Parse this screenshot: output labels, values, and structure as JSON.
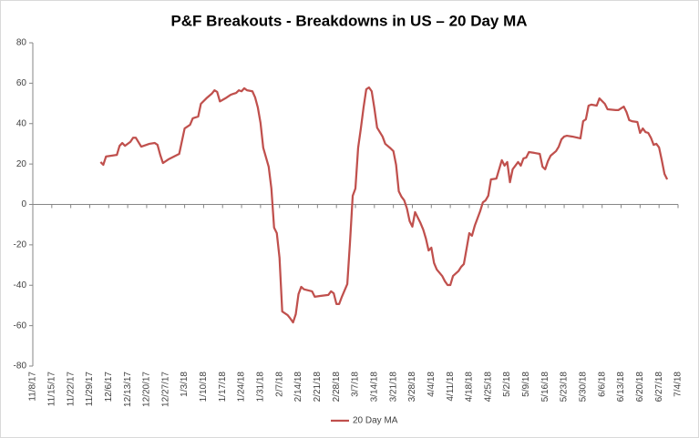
{
  "chart_data": {
    "type": "line",
    "title": "P&F Breakouts - Breakdowns in US – 20 Day MA",
    "x": [
      "12/3/17",
      "12/4/17",
      "12/5/17",
      "12/9/17",
      "12/10/17",
      "12/11/17",
      "12/12/17",
      "12/14/17",
      "12/15/17",
      "12/16/17",
      "12/18/17",
      "12/21/17",
      "12/23/17",
      "12/24/17",
      "12/25/17",
      "12/26/17",
      "12/28/17",
      "1/1/18",
      "1/3/18",
      "1/5/18",
      "1/6/18",
      "1/8/18",
      "1/9/18",
      "1/11/18",
      "1/13/18",
      "1/14/18",
      "1/15/18",
      "1/16/18",
      "1/18/18",
      "1/20/18",
      "1/22/18",
      "1/23/18",
      "1/24/18",
      "1/25/18",
      "1/26/18",
      "1/28/18",
      "1/29/18",
      "1/30/18",
      "1/31/18",
      "2/1/18",
      "2/3/18",
      "2/4/18",
      "2/5/18",
      "2/6/18",
      "2/7/18",
      "2/8/18",
      "2/10/18",
      "2/11/18",
      "2/12/18",
      "2/13/18",
      "2/14/18",
      "2/15/18",
      "2/16/18",
      "2/19/18",
      "2/20/18",
      "2/22/18",
      "2/25/18",
      "2/26/18",
      "2/27/18",
      "2/28/18",
      "3/1/18",
      "3/2/18",
      "3/4/18",
      "3/5/18",
      "3/6/18",
      "3/7/18",
      "3/8/18",
      "3/9/18",
      "3/10/18",
      "3/11/18",
      "3/12/18",
      "3/13/18",
      "3/14/18",
      "3/15/18",
      "3/16/18",
      "3/17/18",
      "3/18/18",
      "3/20/18",
      "3/21/18",
      "3/22/18",
      "3/23/18",
      "3/24/18",
      "3/25/18",
      "3/26/18",
      "3/27/18",
      "3/28/18",
      "3/29/18",
      "3/30/18",
      "3/31/18",
      "4/1/18",
      "4/2/18",
      "4/3/18",
      "4/4/18",
      "4/5/18",
      "4/6/18",
      "4/8/18",
      "4/9/18",
      "4/10/18",
      "4/11/18",
      "4/12/18",
      "4/14/18",
      "4/15/18",
      "4/16/18",
      "4/17/18",
      "4/18/18",
      "4/19/18",
      "4/20/18",
      "4/21/18",
      "4/22/18",
      "4/23/18",
      "4/24/18",
      "4/25/18",
      "4/26/18",
      "4/28/18",
      "4/29/18",
      "4/30/18",
      "5/1/18",
      "5/2/18",
      "5/3/18",
      "5/4/18",
      "5/5/18",
      "5/6/18",
      "5/7/18",
      "5/8/18",
      "5/9/18",
      "5/10/18",
      "5/12/18",
      "5/14/18",
      "5/15/18",
      "5/16/18",
      "5/17/18",
      "5/18/18",
      "5/20/18",
      "5/21/18",
      "5/22/18",
      "5/23/18",
      "5/24/18",
      "5/26/18",
      "5/29/18",
      "5/30/18",
      "5/31/18",
      "6/1/18",
      "6/2/18",
      "6/4/18",
      "6/5/18",
      "6/7/18",
      "6/8/18",
      "6/11/18",
      "6/12/18",
      "6/14/18",
      "6/15/18",
      "6/16/18",
      "6/17/18",
      "6/19/18",
      "6/20/18",
      "6/21/18",
      "6/22/18",
      "6/23/18",
      "6/24/18",
      "6/25/18",
      "6/26/18",
      "6/27/18",
      "6/28/18",
      "6/29/18",
      "6/30/18"
    ],
    "series": [
      {
        "name": "20 Day MA",
        "color": "#c0504d",
        "values": [
          21,
          19.6,
          23.7,
          24.5,
          29,
          30.4,
          29,
          31,
          33,
          33,
          28.6,
          30,
          30.4,
          29.5,
          24.5,
          20.5,
          22.3,
          25,
          37.6,
          39.4,
          42.6,
          43.5,
          49.8,
          52.5,
          54.8,
          56.5,
          55.7,
          51,
          52.5,
          54.3,
          55.2,
          56.5,
          56,
          57.5,
          56.5,
          56,
          53,
          48,
          40.3,
          28,
          18.7,
          7.9,
          -11.5,
          -14.2,
          -26.4,
          -53,
          -54.8,
          -56.5,
          -58.4,
          -54.3,
          -44.4,
          -40.8,
          -42,
          -43,
          -45.7,
          -45.3,
          -44.8,
          -43,
          -44,
          -49.3,
          -49.3,
          -45.7,
          -39.4,
          -18.7,
          4.3,
          7.9,
          28,
          37.6,
          48,
          57,
          57.9,
          56,
          47.5,
          38,
          35.8,
          33.6,
          30,
          27.7,
          26.4,
          19.6,
          6.5,
          3.8,
          2,
          -2,
          -8.3,
          -11,
          -3.8,
          -6.5,
          -9.2,
          -12.4,
          -16.9,
          -22.8,
          -21.4,
          -29,
          -32.2,
          -35.4,
          -38,
          -39.9,
          -39.9,
          -35.4,
          -33,
          -30.9,
          -29.5,
          -21.9,
          -14.2,
          -15.5,
          -10.6,
          -7,
          -3.4,
          1,
          2,
          4.3,
          12.4,
          12.8,
          17.4,
          21.9,
          19.2,
          21,
          11,
          17.4,
          19.2,
          21,
          19.2,
          22.8,
          23.2,
          25.9,
          25.5,
          25,
          18.7,
          17.4,
          21.4,
          24.1,
          26.4,
          28.6,
          32.2,
          33.6,
          34,
          33.6,
          32.7,
          41.2,
          42.1,
          48.9,
          49.4,
          48.9,
          52.5,
          49.8,
          47.1,
          46.7,
          46.7,
          48.4,
          45.7,
          41.7,
          41.2,
          40.8,
          35.4,
          37.6,
          35.8,
          35.4,
          33,
          29.5,
          30,
          28.2,
          21.9,
          15.1,
          12.4
        ]
      }
    ],
    "ylim": [
      -80,
      80
    ],
    "yticks": [
      -80,
      -60,
      -40,
      -20,
      0,
      20,
      40,
      60,
      80
    ],
    "xlim": [
      "11/8/17",
      "7/4/18"
    ],
    "xticks": [
      "11/8/17",
      "11/15/17",
      "11/22/17",
      "11/29/17",
      "12/6/17",
      "12/13/17",
      "12/20/17",
      "12/27/17",
      "1/3/18",
      "1/10/18",
      "1/17/18",
      "1/24/18",
      "1/31/18",
      "2/7/18",
      "2/14/18",
      "2/21/18",
      "2/28/18",
      "3/7/18",
      "3/14/18",
      "3/21/18",
      "3/28/18",
      "4/4/18",
      "4/11/18",
      "4/18/18",
      "4/25/18",
      "5/2/18",
      "5/9/18",
      "5/16/18",
      "5/23/18",
      "5/30/18",
      "6/6/18",
      "6/13/18",
      "6/20/18",
      "6/27/18",
      "7/4/18"
    ],
    "legend": "bottom"
  }
}
